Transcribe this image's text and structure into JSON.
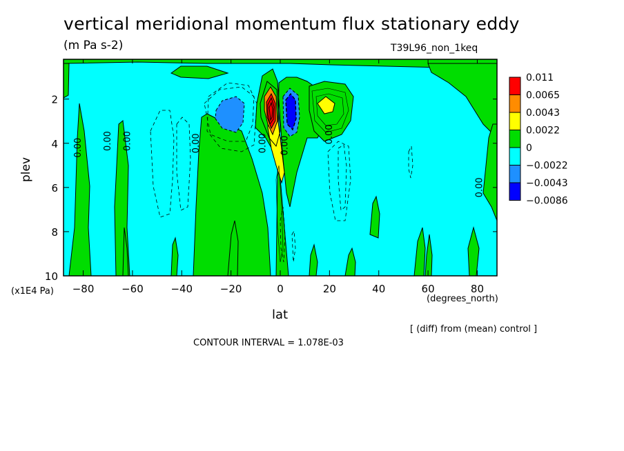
{
  "chart_data": {
    "type": "heatmap",
    "title": "vertical meridional momentum flux stationary eddy",
    "units": "(m Pa s-2)",
    "run_name": "T39L96_non_1keq",
    "xlabel": "lat",
    "xunits": "(degrees_north)",
    "ylabel": "plev",
    "yunits": "(x1E4 Pa)",
    "note": "[ (diff) from (mean) control ]",
    "contour_interval": "CONTOUR INTERVAL = 1.078E-03",
    "xlim": [
      -88,
      88
    ],
    "ylim": [
      10,
      0.2
    ],
    "xticks": [
      -80,
      -60,
      -40,
      -20,
      0,
      20,
      40,
      60,
      80
    ],
    "xtick_labels": [
      "−80",
      "−60",
      "−40",
      "−20",
      "0",
      "20",
      "40",
      "60",
      "80"
    ],
    "yticks": [
      2,
      4,
      6,
      8,
      10
    ],
    "ytick_labels": [
      "2",
      "4",
      "6",
      "8",
      "10"
    ],
    "colorbar": {
      "levels": [
        "0.011",
        "0.0065",
        "0.0043",
        "0.0022",
        "0",
        "−0.0022",
        "−0.0043",
        "−0.0086"
      ],
      "colors": [
        "#ff0000",
        "#ff8c00",
        "#ffff00",
        "#00dd00",
        "#00ffff",
        "#1e90ff",
        "#0000ff"
      ]
    },
    "background_color": "#00ffff",
    "contour_labels": [
      {
        "lat": -81,
        "plev": 4.2,
        "text": "0.00"
      },
      {
        "lat": -69,
        "plev": 3.9,
        "text": "0.00"
      },
      {
        "lat": -61,
        "plev": 3.9,
        "text": "0.00"
      },
      {
        "lat": -33,
        "plev": 4.0,
        "text": "0.00"
      },
      {
        "lat": -6,
        "plev": 4.0,
        "text": "0.00"
      },
      {
        "lat": 3,
        "plev": 4.1,
        "text": "0.00"
      },
      {
        "lat": 21,
        "plev": 3.6,
        "text": "0.00"
      },
      {
        "lat": 82,
        "plev": 6.0,
        "text": "0.00"
      }
    ]
  }
}
